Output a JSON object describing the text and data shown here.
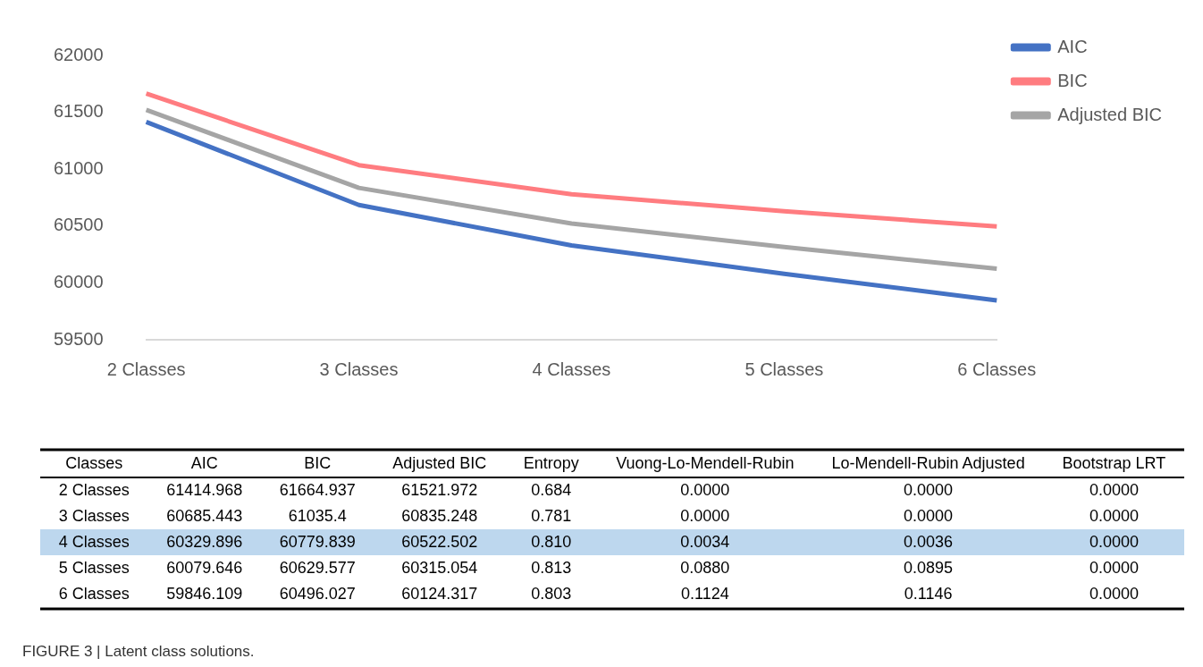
{
  "chart_data": [
    {
      "type": "line",
      "categories": [
        "2 Classes",
        "3 Classes",
        "4 Classes",
        "5 Classes",
        "6 Classes"
      ],
      "series": [
        {
          "name": "AIC",
          "color": "#4472c4",
          "values": [
            61414.968,
            60685.443,
            60329.896,
            60079.646,
            59846.109
          ]
        },
        {
          "name": "BIC",
          "color": "#ff7c80",
          "values": [
            61664.937,
            61035.4,
            60779.839,
            60629.577,
            60496.027
          ]
        },
        {
          "name": "Adjusted BIC",
          "color": "#a5a5a5",
          "values": [
            61521.972,
            60835.248,
            60522.502,
            60315.054,
            60124.317
          ]
        }
      ],
      "ylim": [
        59500,
        62000
      ],
      "yticks": [
        59500,
        60000,
        60500,
        61000,
        61500,
        62000
      ],
      "legend": "top right"
    },
    {
      "type": "other",
      "xlabel": "Classes",
      "categories": [
        "2 Classes",
        "3 Classes",
        "4 Classes",
        "5 Classes",
        "6 Classes"
      ],
      "series": [
        {
          "name": "AIC",
          "values": [
            61414.968,
            60685.443,
            60329.896,
            60079.646,
            59846.109
          ]
        },
        {
          "name": "BIC",
          "values": [
            61664.937,
            61035.4,
            60779.839,
            60629.577,
            60496.027
          ]
        },
        {
          "name": "Adjusted BIC",
          "values": [
            61521.972,
            60835.248,
            60522.502,
            60315.054,
            60124.317
          ]
        },
        {
          "name": "Entropy",
          "values": [
            0.684,
            0.781,
            0.81,
            0.813,
            0.803
          ],
          "value_labels": [
            "0.684",
            "0.781",
            "0.810",
            "0.813",
            "0.803"
          ]
        },
        {
          "name": "Vuong-Lo-Mendell-Rubin",
          "values": [
            0,
            0,
            0.0034,
            0.088,
            0.1124
          ],
          "value_labels": [
            "0.0000",
            "0.0000",
            "0.0034",
            "0.0880",
            "0.1124"
          ]
        },
        {
          "name": "Lo-Mendell-Rubin Adjusted",
          "values": [
            0,
            0,
            0.0036,
            0.0895,
            0.1146
          ],
          "value_labels": [
            "0.0000",
            "0.0000",
            "0.0036",
            "0.0895",
            "0.1146"
          ]
        },
        {
          "name": "Bootstrap LRT",
          "values": [
            0,
            0,
            0,
            0,
            0
          ],
          "value_labels": [
            "0.0000",
            "0.0000",
            "0.0000",
            "0.0000",
            "0.0000"
          ]
        }
      ],
      "data_labels": true,
      "annotations": [
        "FIGURE 3 | Latent class solutions."
      ]
    }
  ]
}
